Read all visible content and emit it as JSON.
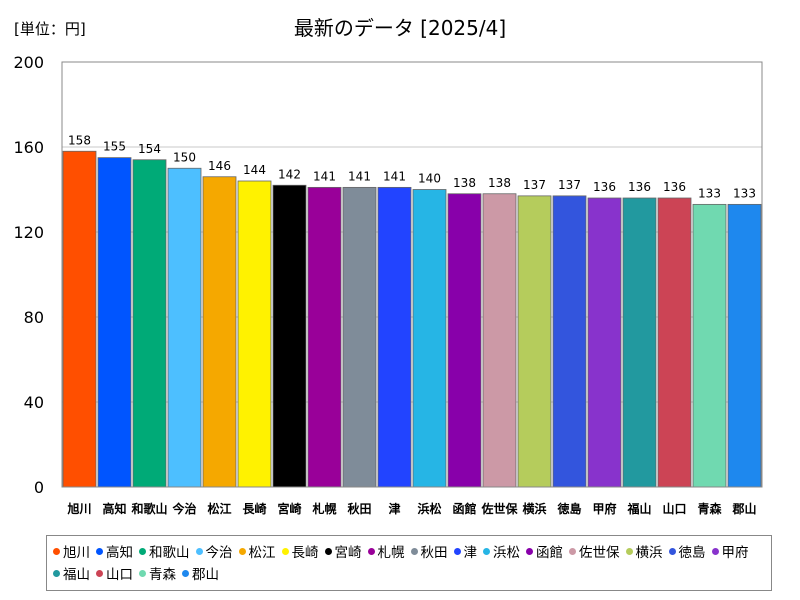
{
  "unit_label": "[単位：円]",
  "chart_data": {
    "type": "bar",
    "title": "最新のデータ [2025/4]",
    "xlabel": "",
    "ylabel": "",
    "ylim": [
      0,
      200
    ],
    "yticks": [
      0,
      40,
      80,
      120,
      160,
      200
    ],
    "grid": true,
    "legend_position": "bottom",
    "categories": [
      "旭川",
      "高知",
      "和歌山",
      "今治",
      "松江",
      "長崎",
      "宮崎",
      "札幌",
      "秋田",
      "津",
      "浜松",
      "函館",
      "佐世保",
      "横浜",
      "徳島",
      "甲府",
      "福山",
      "山口",
      "青森",
      "郡山"
    ],
    "values": [
      158,
      155,
      154,
      150,
      146,
      144,
      142,
      141,
      141,
      141,
      140,
      138,
      138,
      137,
      137,
      136,
      136,
      136,
      133,
      133
    ],
    "colors": [
      "#ff4f00",
      "#0055ff",
      "#00aa77",
      "#4dbfff",
      "#f5a800",
      "#fff200",
      "#000000",
      "#990099",
      "#7f8c99",
      "#2244ff",
      "#26b5e5",
      "#8800aa",
      "#cc99a6",
      "#b5cc5c",
      "#3355dd",
      "#8833cc",
      "#22999f",
      "#cc4455",
      "#70d9b0",
      "#1e88ee"
    ]
  }
}
